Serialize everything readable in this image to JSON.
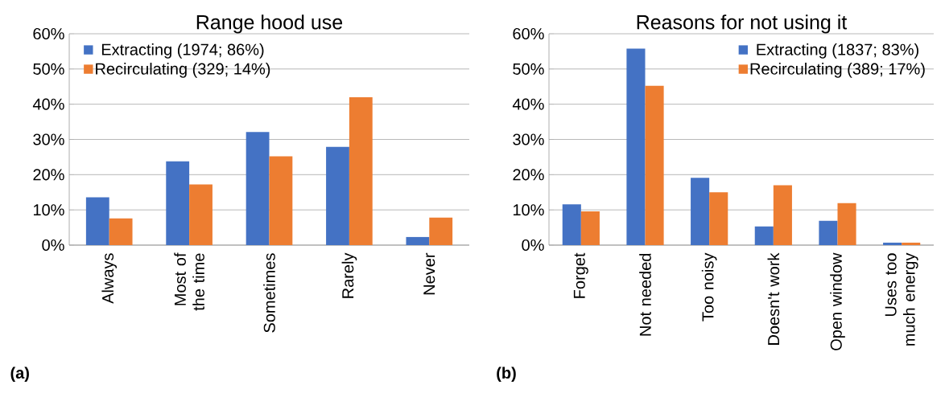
{
  "chart_data": [
    {
      "type": "bar",
      "title": "Range hood use",
      "categories": [
        "Always",
        "Most of the time",
        "Sometimes",
        "Rarely",
        "Never"
      ],
      "series": [
        {
          "name": "Extracting (1974; 86%)",
          "color": "#4472c4",
          "values": [
            13.6,
            23.8,
            32.1,
            27.9,
            2.3
          ]
        },
        {
          "name": "Recirculating (329; 14%)",
          "color": "#ed7d31",
          "values": [
            7.6,
            17.2,
            25.2,
            42.0,
            7.8
          ]
        }
      ],
      "ylim": [
        0,
        60
      ],
      "yticks": [
        {
          "value": 0,
          "label": "0%"
        },
        {
          "value": 10,
          "label": "10%"
        },
        {
          "value": 20,
          "label": "20%"
        },
        {
          "value": 30,
          "label": "30%"
        },
        {
          "value": 40,
          "label": "40%"
        },
        {
          "value": 50,
          "label": "50%"
        },
        {
          "value": 60,
          "label": "60%"
        }
      ],
      "grid": "y",
      "legend": "top left",
      "annotations": [
        "(a)"
      ]
    },
    {
      "type": "bar",
      "title": "Reasons for not using it",
      "categories": [
        "Forget",
        "Not needed",
        "Too noisy",
        "Doesn't work",
        "Open window",
        "Uses too much energy"
      ],
      "series": [
        {
          "name": "Extracting (1837; 83%)",
          "color": "#4472c4",
          "values": [
            11.6,
            55.8,
            19.1,
            5.3,
            6.9,
            0.7
          ]
        },
        {
          "name": "Recirculating (389; 17%)",
          "color": "#ed7d31",
          "values": [
            9.6,
            45.2,
            15.0,
            17.0,
            11.9,
            0.7
          ]
        }
      ],
      "ylim": [
        0,
        60
      ],
      "yticks": [
        {
          "value": 0,
          "label": "0%"
        },
        {
          "value": 10,
          "label": "10%"
        },
        {
          "value": 20,
          "label": "20%"
        },
        {
          "value": 30,
          "label": "30%"
        },
        {
          "value": 40,
          "label": "40%"
        },
        {
          "value": 50,
          "label": "50%"
        },
        {
          "value": 60,
          "label": "60%"
        }
      ],
      "grid": "y",
      "legend": "top right",
      "annotations": [
        "(b)"
      ]
    }
  ]
}
